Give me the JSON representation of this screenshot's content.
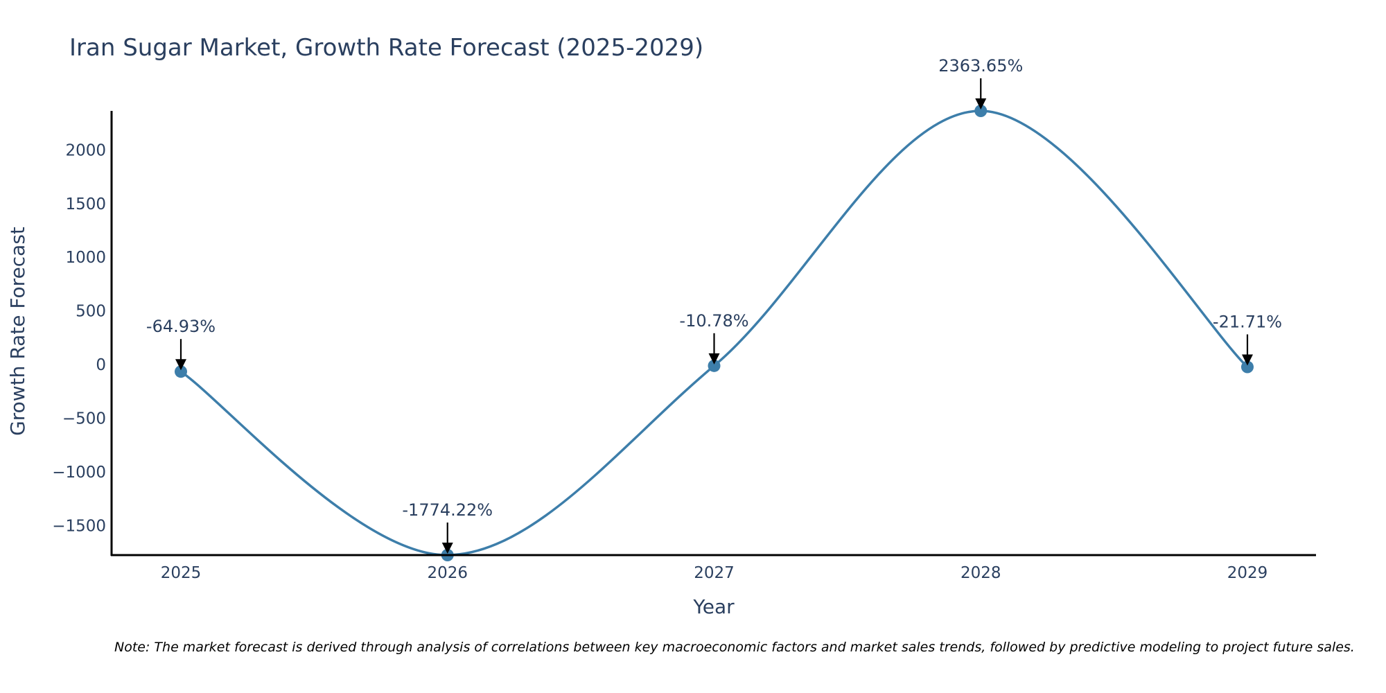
{
  "chart_data": {
    "type": "line",
    "title": "Iran Sugar Market, Growth Rate Forecast (2025-2029)",
    "xlabel": "Year",
    "ylabel": "Growth Rate Forecast",
    "categories": [
      "2025",
      "2026",
      "2027",
      "2028",
      "2029"
    ],
    "series": [
      {
        "name": "Growth Rate Forecast",
        "values": [
          -64.93,
          -1774.22,
          -10.78,
          2363.65,
          -21.71
        ]
      }
    ],
    "data_labels": [
      "-64.93%",
      "-1774.22%",
      "-10.78%",
      "2363.65%",
      "-21.71%"
    ],
    "y_ticks": [
      -1500,
      -1000,
      -500,
      0,
      500,
      1000,
      1500,
      2000
    ],
    "y_tick_labels": [
      "−1500",
      "−1000",
      "−500",
      "0",
      "500",
      "1000",
      "1500",
      "2000"
    ],
    "ylim": [
      -1774.22,
      2363.65
    ],
    "grid": false,
    "line_color": "#3d7eaa",
    "note": "Note: The market forecast is derived through analysis of correlations between key macroeconomic factors and market sales trends, followed by predictive modeling to project future sales."
  }
}
